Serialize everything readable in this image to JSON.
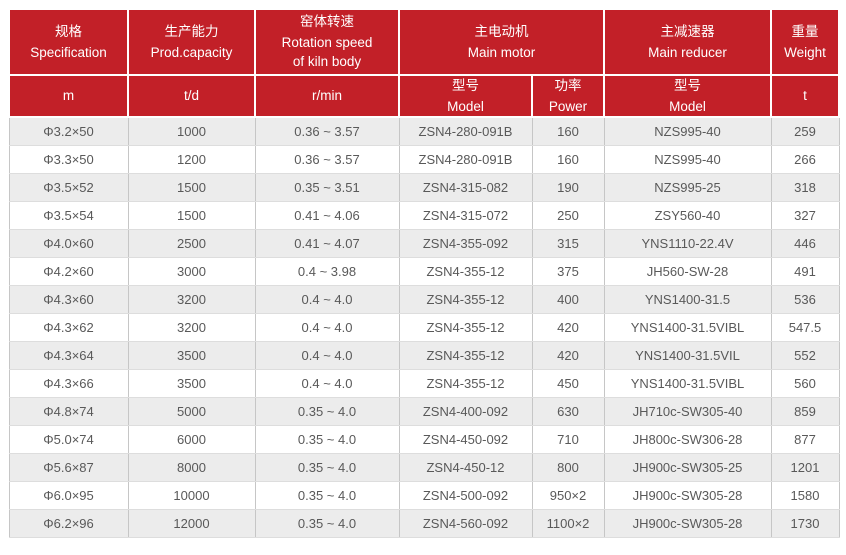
{
  "colors": {
    "header_background": "#c22028",
    "header_text": "#ffffff",
    "row_stripe": "#ececec",
    "row_plain": "#ffffff",
    "cell_text": "#595959",
    "grid_vertical": "#c6c6c6",
    "grid_horizontal": "#dddddd"
  },
  "table": {
    "header": {
      "spec_zh": "规格",
      "spec_en": "Specification",
      "capacity_zh": "生产能力",
      "capacity_en": "Prod.capacity",
      "rotation_zh": "窑体转速",
      "rotation_en1": "Rotation speed",
      "rotation_en2": "of kiln body",
      "motor_zh": "主电动机",
      "motor_en": "Main motor",
      "reducer_zh": "主减速器",
      "reducer_en": "Main reducer",
      "weight_zh": "重量",
      "weight_en": "Weight",
      "unit_m": "m",
      "unit_td": "t/d",
      "unit_rmin": "r/min",
      "motor_model_zh": "型号",
      "motor_model_en": "Model",
      "motor_power_zh": "功率",
      "motor_power_en": "Power",
      "reducer_model_zh": "型号",
      "reducer_model_en": "Model",
      "unit_t": "t"
    }
  },
  "chart_data": {
    "type": "table",
    "title": "",
    "column_groups": [
      "规格 Specification",
      "生产能力 Prod.capacity",
      "窑体转速 Rotation speed of kiln body",
      "主电动机 Main motor",
      "主减速器 Main reducer",
      "重量 Weight"
    ],
    "columns": [
      "规格 Specification (m)",
      "生产能力 Prod.capacity (t/d)",
      "窑体转速 Rotation speed of kiln body (r/min)",
      "主电动机 Main motor — 型号 Model",
      "主电动机 Main motor — 功率 Power",
      "主减速器 Main reducer — 型号 Model",
      "重量 Weight (t)"
    ],
    "rows": [
      [
        "Φ3.2×50",
        "1000",
        "0.36 ~ 3.57",
        "ZSN4-280-091B",
        "160",
        "NZS995-40",
        "259"
      ],
      [
        "Φ3.3×50",
        "1200",
        "0.36 ~ 3.57",
        "ZSN4-280-091B",
        "160",
        "NZS995-40",
        "266"
      ],
      [
        "Φ3.5×52",
        "1500",
        "0.35 ~ 3.51",
        "ZSN4-315-082",
        "190",
        "NZS995-25",
        "318"
      ],
      [
        "Φ3.5×54",
        "1500",
        "0.41 ~ 4.06",
        "ZSN4-315-072",
        "250",
        "ZSY560-40",
        "327"
      ],
      [
        "Φ4.0×60",
        "2500",
        "0.41 ~ 4.07",
        "ZSN4-355-092",
        "315",
        "YNS1110-22.4V",
        "446"
      ],
      [
        "Φ4.2×60",
        "3000",
        "0.4 ~ 3.98",
        "ZSN4-355-12",
        "375",
        "JH560-SW-28",
        "491"
      ],
      [
        "Φ4.3×60",
        "3200",
        "0.4 ~ 4.0",
        "ZSN4-355-12",
        "400",
        "YNS1400-31.5",
        "536"
      ],
      [
        "Φ4.3×62",
        "3200",
        "0.4 ~ 4.0",
        "ZSN4-355-12",
        "420",
        "YNS1400-31.5VIBL",
        "547.5"
      ],
      [
        "Φ4.3×64",
        "3500",
        "0.4 ~ 4.0",
        "ZSN4-355-12",
        "420",
        "YNS1400-31.5VIL",
        "552"
      ],
      [
        "Φ4.3×66",
        "3500",
        "0.4 ~ 4.0",
        "ZSN4-355-12",
        "450",
        "YNS1400-31.5VIBL",
        "560"
      ],
      [
        "Φ4.8×74",
        "5000",
        "0.35 ~ 4.0",
        "ZSN4-400-092",
        "630",
        "JH710c-SW305-40",
        "859"
      ],
      [
        "Φ5.0×74",
        "6000",
        "0.35 ~ 4.0",
        "ZSN4-450-092",
        "710",
        "JH800c-SW306-28",
        "877"
      ],
      [
        "Φ5.6×87",
        "8000",
        "0.35 ~ 4.0",
        "ZSN4-450-12",
        "800",
        "JH900c-SW305-25",
        "1201"
      ],
      [
        "Φ6.0×95",
        "10000",
        "0.35 ~ 4.0",
        "ZSN4-500-092",
        "950×2",
        "JH900c-SW305-28",
        "1580"
      ],
      [
        "Φ6.2×96",
        "12000",
        "0.35 ~ 4.0",
        "ZSN4-560-092",
        "1100×2",
        "JH900c-SW305-28",
        "1730"
      ]
    ]
  }
}
